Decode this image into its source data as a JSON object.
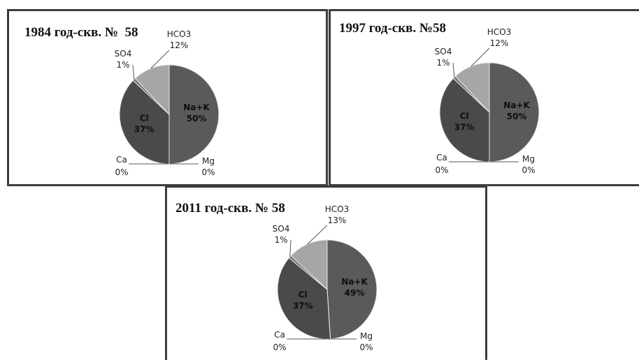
{
  "chart_data": [
    {
      "type": "pie",
      "title": "1984 год-скв. №  58",
      "slices": [
        {
          "name": "Na+K",
          "value": 50,
          "label": "50%",
          "color": "#5a5a5a"
        },
        {
          "name": "Mg",
          "value": 0,
          "label": "0%",
          "color": "#6a6a6a"
        },
        {
          "name": "Ca",
          "value": 0,
          "label": "0%",
          "color": "#606060"
        },
        {
          "name": "Cl",
          "value": 37,
          "label": "37%",
          "color": "#4a4a4a"
        },
        {
          "name": "SO4",
          "value": 1,
          "label": "1%",
          "color": "#7a7a7a"
        },
        {
          "name": "HCO3",
          "value": 12,
          "label": "12%",
          "color": "#a6a6a6"
        }
      ]
    },
    {
      "type": "pie",
      "title": "1997 год-скв. №58",
      "slices": [
        {
          "name": "Na+K",
          "value": 50,
          "label": "50%",
          "color": "#5a5a5a"
        },
        {
          "name": "Mg",
          "value": 0,
          "label": "0%",
          "color": "#6a6a6a"
        },
        {
          "name": "Ca",
          "value": 0,
          "label": "0%",
          "color": "#606060"
        },
        {
          "name": "Cl",
          "value": 37,
          "label": "37%",
          "color": "#4a4a4a"
        },
        {
          "name": "SO4",
          "value": 1,
          "label": "1%",
          "color": "#7a7a7a"
        },
        {
          "name": "HCO3",
          "value": 12,
          "label": "12%",
          "color": "#a6a6a6"
        }
      ]
    },
    {
      "type": "pie",
      "title": "2011 год-скв. № 58",
      "slices": [
        {
          "name": "Na+K",
          "value": 49,
          "label": "49%",
          "color": "#5a5a5a"
        },
        {
          "name": "Mg",
          "value": 0,
          "label": "0%",
          "color": "#6a6a6a"
        },
        {
          "name": "Ca",
          "value": 0,
          "label": "0%",
          "color": "#606060"
        },
        {
          "name": "Cl",
          "value": 37,
          "label": "37%",
          "color": "#4a4a4a"
        },
        {
          "name": "SO4",
          "value": 1,
          "label": "1%",
          "color": "#7a7a7a"
        },
        {
          "name": "HCO3",
          "value": 13,
          "label": "13%",
          "color": "#a6a6a6"
        }
      ]
    }
  ]
}
